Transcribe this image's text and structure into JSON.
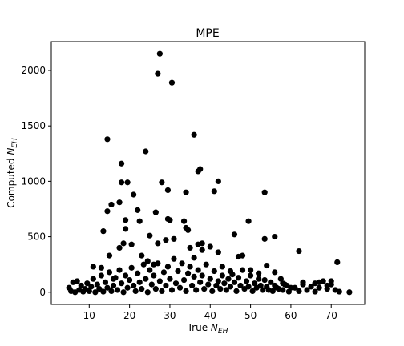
{
  "chart_data": {
    "type": "scatter",
    "title": "MPE",
    "xlabel": [
      "True ",
      "N",
      "EH"
    ],
    "ylabel": [
      "Computed ",
      "N",
      "EH"
    ],
    "xlim": [
      0.6,
      78.3
    ],
    "ylim": [
      -110,
      2260
    ],
    "xticks": [
      10,
      20,
      30,
      40,
      50,
      60,
      70
    ],
    "yticks": [
      0,
      500,
      1000,
      1500,
      2000
    ],
    "color": "#000000",
    "grid": false,
    "x": [
      27.5,
      27,
      30.5,
      14.5,
      36,
      24,
      18,
      37.5,
      37,
      42,
      18,
      19.5,
      28,
      53.5,
      34,
      41,
      29.5,
      21,
      15.5,
      17.5,
      14.5,
      22,
      26.5,
      19,
      22.5,
      29.5,
      30,
      33.5,
      13.5,
      19,
      34,
      34.5,
      25,
      49.5,
      56,
      53.5,
      46,
      62,
      71.5,
      74.5,
      18.5,
      20.5,
      15,
      17.5,
      23,
      27,
      29,
      31,
      35,
      37,
      38,
      40,
      42,
      48,
      47,
      54,
      56,
      11,
      13,
      16,
      24.5,
      26,
      36,
      38,
      43,
      45,
      50,
      52,
      58,
      60,
      63,
      66,
      68,
      69,
      70,
      67,
      5,
      5.5,
      6,
      6.5,
      7,
      7.5,
      8,
      8.5,
      9,
      9.5,
      10,
      10.5,
      11,
      11.5,
      12,
      12.5,
      13,
      13.5,
      14,
      14.5,
      15,
      15.5,
      16,
      16.5,
      17,
      17.5,
      18,
      18.5,
      19,
      19.5,
      20,
      20.5,
      21,
      21.5,
      22,
      22.5,
      23,
      23.5,
      24,
      24.5,
      25,
      25.5,
      26,
      26.5,
      27,
      27.5,
      28,
      28.5,
      29,
      29.5,
      30,
      30.5,
      31,
      31.5,
      32,
      32.5,
      33,
      33.5,
      34,
      34.5,
      35,
      35.5,
      36,
      36.5,
      37,
      37.5,
      38,
      38.5,
      39,
      39.5,
      40,
      40.5,
      41,
      41.5,
      42,
      42.5,
      43,
      43.5,
      44,
      44.5,
      45,
      45.5,
      46,
      46.5,
      47,
      47.5,
      48,
      48.5,
      49,
      49.5,
      50,
      50.5,
      51,
      51.5,
      52,
      52.5,
      53,
      53.5,
      54,
      54.5,
      55,
      55.5,
      56,
      56.5,
      57,
      57.5,
      58,
      58.5,
      59,
      59.5,
      61,
      62,
      63,
      64,
      65,
      66,
      67,
      69,
      70,
      71,
      72
    ],
    "values": [
      2150,
      1970,
      1890,
      1380,
      1420,
      1270,
      1160,
      1110,
      1090,
      1000,
      990,
      990,
      990,
      900,
      900,
      910,
      920,
      880,
      790,
      810,
      730,
      740,
      720,
      650,
      640,
      660,
      650,
      640,
      550,
      570,
      580,
      560,
      510,
      640,
      500,
      480,
      520,
      370,
      270,
      0,
      440,
      430,
      330,
      400,
      330,
      440,
      470,
      480,
      400,
      430,
      440,
      410,
      360,
      330,
      320,
      240,
      180,
      230,
      220,
      120,
      280,
      250,
      310,
      380,
      230,
      190,
      200,
      120,
      80,
      40,
      90,
      80,
      100,
      60,
      100,
      40,
      40,
      10,
      90,
      0,
      100,
      20,
      60,
      5,
      30,
      80,
      10,
      50,
      120,
      0,
      70,
      30,
      150,
      5,
      90,
      40,
      180,
      10,
      60,
      130,
      20,
      200,
      80,
      0,
      150,
      40,
      110,
      220,
      60,
      10,
      170,
      90,
      30,
      250,
      120,
      0,
      200,
      70,
      150,
      30,
      260,
      100,
      10,
      180,
      60,
      230,
      120,
      20,
      300,
      80,
      190,
      40,
      260,
      110,
      10,
      170,
      230,
      60,
      140,
      20,
      200,
      90,
      150,
      30,
      250,
      70,
      120,
      10,
      190,
      60,
      100,
      30,
      150,
      80,
      20,
      120,
      50,
      160,
      90,
      10,
      130,
      60,
      200,
      30,
      100,
      50,
      150,
      10,
      80,
      40,
      170,
      60,
      20,
      110,
      50,
      20,
      90,
      10,
      60,
      40,
      30,
      120,
      20,
      70,
      60,
      5,
      40,
      10,
      70,
      20,
      50,
      5,
      90,
      30,
      70,
      20,
      5
    ]
  }
}
